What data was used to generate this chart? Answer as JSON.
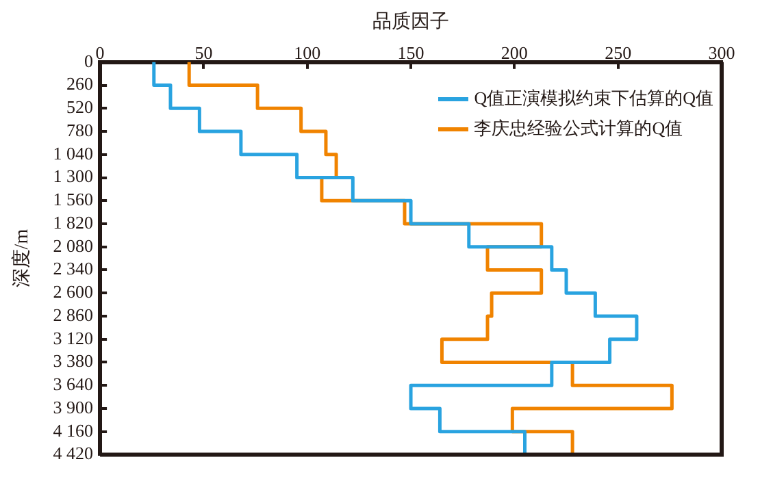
{
  "chart_data": {
    "type": "line",
    "xlabel": "品质因子",
    "ylabel": "深度/m",
    "xlim": [
      0,
      300
    ],
    "xticks": [
      0,
      50,
      100,
      150,
      200,
      250,
      300
    ],
    "ylim": [
      4420,
      0
    ],
    "yticks": [
      0,
      260,
      520,
      780,
      {
        "value": 1040,
        "label": "1 040"
      },
      {
        "value": 1300,
        "label": "1 300"
      },
      {
        "value": 1560,
        "label": "1 560"
      },
      {
        "value": 1820,
        "label": "1 820"
      },
      {
        "value": 2080,
        "label": "2 080"
      },
      {
        "value": 2340,
        "label": "2 340"
      },
      {
        "value": 2600,
        "label": "2 600"
      },
      {
        "value": 2860,
        "label": "2 860"
      },
      {
        "value": 3120,
        "label": "3 120"
      },
      {
        "value": 3380,
        "label": "3 380"
      },
      {
        "value": 3640,
        "label": "3 640"
      },
      {
        "value": 3900,
        "label": "3 900"
      },
      {
        "value": 4160,
        "label": "4 160"
      },
      {
        "value": 4420,
        "label": "4 420"
      }
    ],
    "legend": "top right",
    "grid": false,
    "marker": "none",
    "line_style": "solid",
    "series": [
      {
        "name": "Q值正演模拟约束下估算的Q值",
        "color": "#29a3e0",
        "x": [
          26,
          26,
          34,
          34,
          48,
          48,
          68,
          68,
          95,
          95,
          122,
          122,
          150,
          150,
          178,
          178,
          218,
          218,
          225,
          225,
          239,
          239,
          259,
          259,
          246,
          246,
          218,
          218,
          150,
          150,
          164,
          164,
          205,
          205
        ],
        "values": [
          0,
          260,
          260,
          520,
          520,
          780,
          780,
          1040,
          1040,
          1300,
          1300,
          1560,
          1560,
          1820,
          1820,
          2080,
          2080,
          2340,
          2340,
          2600,
          2600,
          2860,
          2860,
          3120,
          3120,
          3380,
          3380,
          3640,
          3640,
          3900,
          3900,
          4160,
          4160,
          4420
        ]
      },
      {
        "name": "李庆忠经验公式计算的Q值",
        "color": "#f08300",
        "x": [
          43,
          43,
          76,
          76,
          97,
          97,
          109,
          109,
          114,
          114,
          107,
          107,
          147,
          147,
          213,
          213,
          187,
          187,
          213,
          213,
          189,
          189,
          187,
          187,
          165,
          165,
          228,
          228,
          276,
          276,
          199,
          199,
          228,
          228
        ],
        "values": [
          0,
          260,
          260,
          520,
          520,
          780,
          780,
          1040,
          1040,
          1300,
          1300,
          1560,
          1560,
          1820,
          1820,
          2080,
          2080,
          2340,
          2340,
          2600,
          2600,
          2860,
          2860,
          3120,
          3120,
          3380,
          3380,
          3640,
          3640,
          3900,
          3900,
          4160,
          4160,
          4420
        ]
      }
    ]
  }
}
